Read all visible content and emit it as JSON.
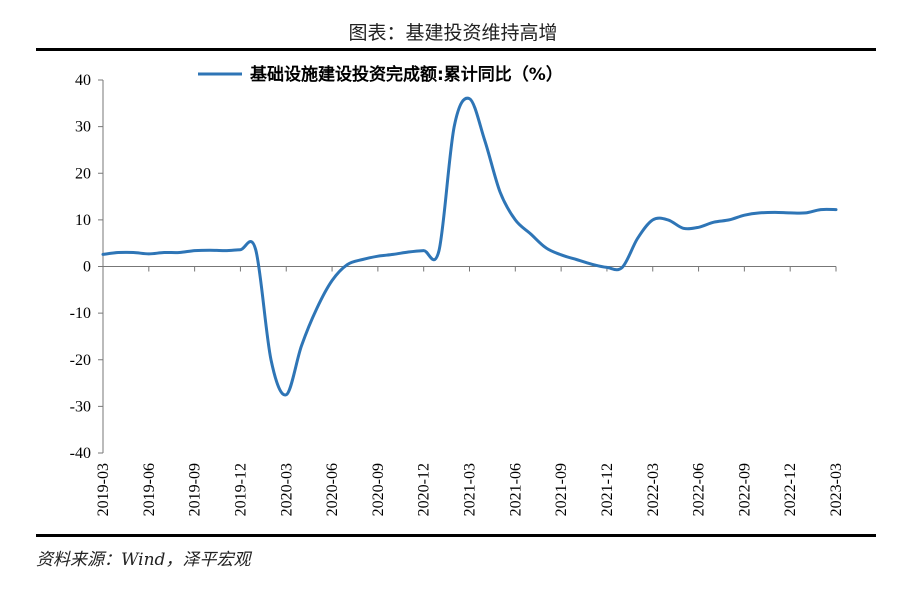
{
  "figure": {
    "title": "图表：基建投资维持高增",
    "source": "资料来源：Wind，泽平宏观"
  },
  "chart_data": {
    "type": "line",
    "title": "",
    "xlabel": "",
    "ylabel": "",
    "ylim": [
      -40,
      40
    ],
    "yticks": [
      40,
      30,
      20,
      10,
      0,
      -10,
      -20,
      -30,
      -40
    ],
    "xticks": [
      "2019-03",
      "2019-06",
      "2019-09",
      "2019-12",
      "2020-03",
      "2020-06",
      "2020-09",
      "2020-12",
      "2021-03",
      "2021-06",
      "2021-09",
      "2021-12",
      "2022-03",
      "2022-06",
      "2022-09",
      "2022-12",
      "2023-03"
    ],
    "grid": false,
    "legend_position": "top",
    "line_color": "#2E75B6",
    "series": [
      {
        "name": "基础设施建设投资完成额:累计同比（%）",
        "points": [
          [
            "2019-03",
            2.6
          ],
          [
            "2019-04",
            3.0
          ],
          [
            "2019-05",
            3.0
          ],
          [
            "2019-06",
            2.7
          ],
          [
            "2019-07",
            3.0
          ],
          [
            "2019-08",
            3.0
          ],
          [
            "2019-09",
            3.4
          ],
          [
            "2019-10",
            3.5
          ],
          [
            "2019-11",
            3.4
          ],
          [
            "2019-12",
            3.6
          ],
          [
            "2020-01",
            3.6
          ],
          [
            "2020-02",
            -20.0
          ],
          [
            "2020-03",
            -27.5
          ],
          [
            "2020-04",
            -17.0
          ],
          [
            "2020-05",
            -9.0
          ],
          [
            "2020-06",
            -3.0
          ],
          [
            "2020-07",
            0.4
          ],
          [
            "2020-08",
            1.5
          ],
          [
            "2020-09",
            2.2
          ],
          [
            "2020-10",
            2.6
          ],
          [
            "2020-11",
            3.1
          ],
          [
            "2020-12",
            3.4
          ],
          [
            "2021-01",
            3.4
          ],
          [
            "2021-02",
            30.0
          ],
          [
            "2021-03",
            36.0
          ],
          [
            "2021-04",
            27.0
          ],
          [
            "2021-05",
            16.0
          ],
          [
            "2021-06",
            10.0
          ],
          [
            "2021-07",
            7.0
          ],
          [
            "2021-08",
            4.0
          ],
          [
            "2021-09",
            2.5
          ],
          [
            "2021-10",
            1.5
          ],
          [
            "2021-11",
            0.5
          ],
          [
            "2021-12",
            -0.2
          ],
          [
            "2022-01",
            -0.2
          ],
          [
            "2022-02",
            6.0
          ],
          [
            "2022-03",
            10.0
          ],
          [
            "2022-04",
            10.0
          ],
          [
            "2022-05",
            8.2
          ],
          [
            "2022-06",
            8.4
          ],
          [
            "2022-07",
            9.5
          ],
          [
            "2022-08",
            10.0
          ],
          [
            "2022-09",
            11.0
          ],
          [
            "2022-10",
            11.5
          ],
          [
            "2022-11",
            11.6
          ],
          [
            "2022-12",
            11.5
          ],
          [
            "2023-01",
            11.5
          ],
          [
            "2023-02",
            12.2
          ],
          [
            "2023-03",
            12.2
          ]
        ]
      }
    ]
  }
}
